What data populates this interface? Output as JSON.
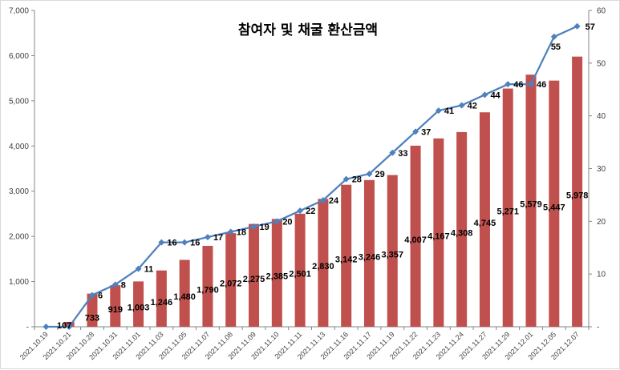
{
  "chart_data": {
    "type": "bar",
    "title": "참여자 및 채굴 환산금액",
    "categories": [
      "2021.10.19",
      "2021.10.21",
      "2021.10.28",
      "2021.10.31",
      "2021.11.01",
      "2021.11.03",
      "2021.11.05",
      "2021.11.07",
      "2021.11.08",
      "2021.11.09",
      "2021.11.10",
      "2021.11.11",
      "2021.11.13",
      "2021.11.16",
      "2021.11.17",
      "2021.11.19",
      "2021.11.22",
      "2021.11.23",
      "2021.11.24",
      "2021.11.27",
      "2021.11.29",
      "2021.12.01",
      "2021.12.05",
      "2021.12.07"
    ],
    "series": [
      {
        "type": "bar",
        "axis": "left",
        "color": "#c0504d",
        "values": [
          0,
          107,
          733,
          919,
          1003,
          1246,
          1480,
          1790,
          2072,
          2275,
          2385,
          2501,
          2830,
          3142,
          3246,
          3357,
          4007,
          4167,
          4308,
          4745,
          5271,
          5579,
          5447,
          5978
        ],
        "labels": [
          "",
          "107",
          "733",
          "919",
          "1,003",
          "1,246",
          "1,480",
          "1,790",
          "2,072",
          "2,275",
          "2,385",
          "2,501",
          "2,830",
          "3,142",
          "3,246",
          "3,357",
          "4,007",
          "4,167",
          "4,308",
          "4,745",
          "5,271",
          "5,579",
          "5,447",
          "5,978"
        ]
      },
      {
        "type": "line",
        "axis": "right",
        "color": "#4f81bd",
        "values": [
          0,
          0,
          6,
          8,
          11,
          16,
          16,
          17,
          18,
          19,
          20,
          22,
          24,
          28,
          29,
          33,
          37,
          41,
          42,
          44,
          46,
          46,
          55,
          57
        ],
        "labels": [
          "",
          "",
          "6",
          "8",
          "11",
          "16",
          "16",
          "17",
          "18",
          "19",
          "20",
          "22",
          "24",
          "28",
          "29",
          "33",
          "37",
          "41",
          "42",
          "44",
          "46",
          "46",
          "55",
          "57"
        ]
      }
    ],
    "ylim_left": [
      0,
      7000
    ],
    "ylim_right": [
      0,
      60
    ],
    "yticks_left": [
      "-",
      "1,000",
      "2,000",
      "3,000",
      "4,000",
      "5,000",
      "6,000",
      "7,000"
    ],
    "yticks_right": [
      "-",
      "10",
      "20",
      "30",
      "40",
      "50",
      "60"
    ],
    "grid": false,
    "legend": "none"
  }
}
